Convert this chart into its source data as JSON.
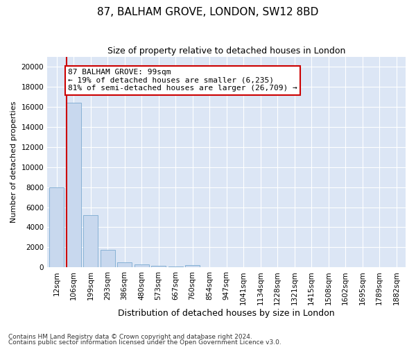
{
  "title": "87, BALHAM GROVE, LONDON, SW12 8BD",
  "subtitle": "Size of property relative to detached houses in London",
  "xlabel": "Distribution of detached houses by size in London",
  "ylabel": "Number of detached properties",
  "categories": [
    "12sqm",
    "106sqm",
    "199sqm",
    "293sqm",
    "386sqm",
    "480sqm",
    "573sqm",
    "667sqm",
    "760sqm",
    "854sqm",
    "947sqm",
    "1041sqm",
    "1134sqm",
    "1228sqm",
    "1321sqm",
    "1415sqm",
    "1508sqm",
    "1602sqm",
    "1695sqm",
    "1789sqm",
    "1882sqm"
  ],
  "values": [
    8000,
    16400,
    5200,
    1750,
    480,
    290,
    170,
    120,
    200,
    0,
    0,
    0,
    0,
    0,
    0,
    0,
    0,
    0,
    0,
    0,
    0
  ],
  "bar_color": "#c8d8ee",
  "bar_edge_color": "#7aaad0",
  "annotation_text": "87 BALHAM GROVE: 99sqm\n← 19% of detached houses are smaller (6,235)\n81% of semi-detached houses are larger (26,709) →",
  "annotation_box_facecolor": "#ffffff",
  "annotation_box_edgecolor": "#cc0000",
  "vline_color": "#cc0000",
  "ylim": [
    0,
    21000
  ],
  "yticks": [
    0,
    2000,
    4000,
    6000,
    8000,
    10000,
    12000,
    14000,
    16000,
    18000,
    20000
  ],
  "footnote1": "Contains HM Land Registry data © Crown copyright and database right 2024.",
  "footnote2": "Contains public sector information licensed under the Open Government Licence v3.0.",
  "fig_bg_color": "#ffffff",
  "plot_bg_color": "#dce6f5",
  "grid_color": "#ffffff",
  "title_fontsize": 11,
  "subtitle_fontsize": 9,
  "axis_label_fontsize": 9,
  "tick_fontsize": 7.5,
  "annot_fontsize": 8,
  "ylabel_fontsize": 8
}
